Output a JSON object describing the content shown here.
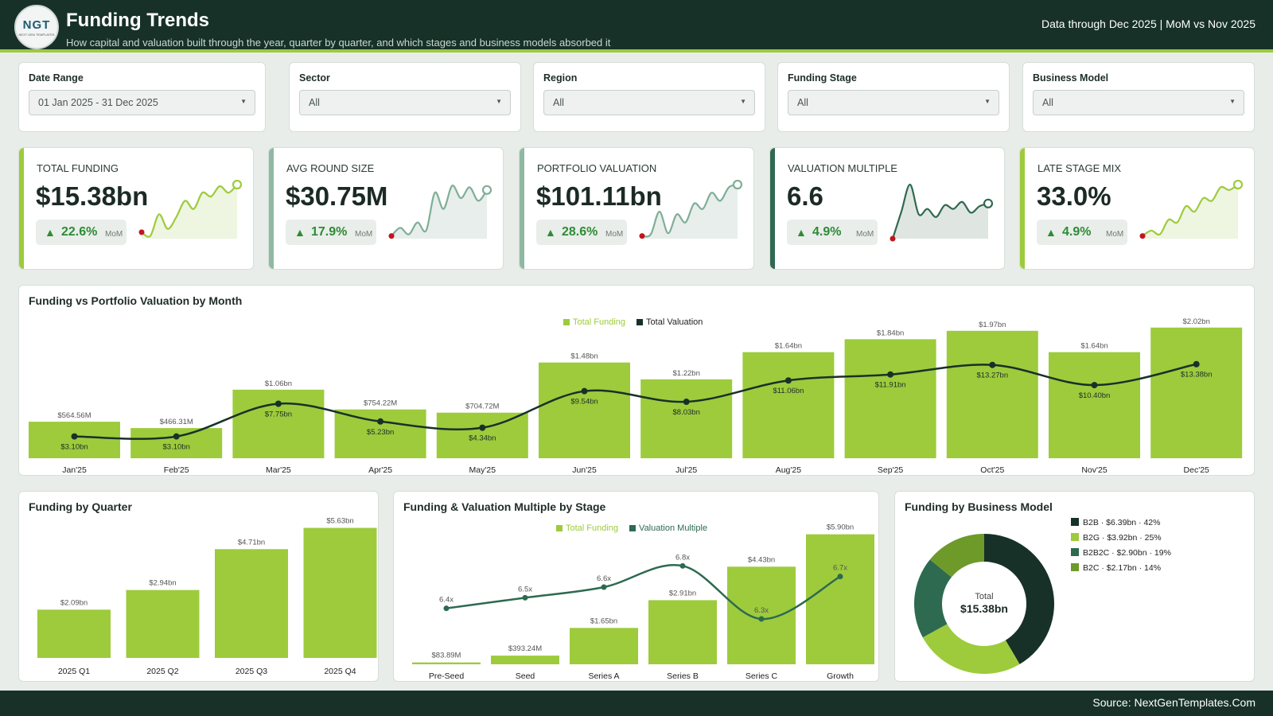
{
  "header": {
    "logo_text": "NGT",
    "logo_sub": "NEXT GEN TEMPLATES",
    "title": "Funding Trends",
    "subtitle": "How capital and valuation built through the year, quarter by quarter, and which stages and business models absorbed it",
    "data_through": "Data through Dec 2025 | MoM vs Nov 2025"
  },
  "filters": [
    {
      "label": "Date Range",
      "value": "01 Jan 2025 - 31 Dec 2025"
    },
    {
      "label": "Sector",
      "value": "All"
    },
    {
      "label": "Region",
      "value": "All"
    },
    {
      "label": "Funding Stage",
      "value": "All"
    },
    {
      "label": "Business Model",
      "value": "All"
    }
  ],
  "kpis": [
    {
      "label": "TOTAL FUNDING",
      "value": "$15.38bn",
      "change": "22.6%",
      "change_label": "MoM",
      "accent": "#9dcb3c",
      "spark_color": "#9dcb3c",
      "fill": "#eef5e1",
      "spark": [
        0.12,
        0.05,
        0.45,
        0.18,
        0.4,
        0.7,
        0.55,
        0.85,
        0.78,
        0.97,
        0.85,
        1.0
      ]
    },
    {
      "label": "AVG ROUND SIZE",
      "value": "$30.75M",
      "change": "17.9%",
      "change_label": "MoM",
      "accent": "#8fb9a3",
      "spark_color": "#7fae98",
      "fill": "#e8eeeb",
      "spark": [
        0.05,
        0.2,
        0.08,
        0.3,
        0.15,
        0.85,
        0.55,
        0.98,
        0.75,
        0.95,
        0.7,
        0.9
      ]
    },
    {
      "label": "PORTFOLIO VALUATION",
      "value": "$101.11bn",
      "change": "28.6%",
      "change_label": "MoM",
      "accent": "#8fb9a3",
      "spark_color": "#7fae98",
      "fill": "#e8eeeb",
      "spark": [
        0.05,
        0.08,
        0.5,
        0.1,
        0.45,
        0.3,
        0.65,
        0.55,
        0.85,
        0.7,
        0.95,
        1.0
      ]
    },
    {
      "label": "VALUATION MULTIPLE",
      "value": "6.6",
      "change": "4.9%",
      "change_label": "MoM",
      "accent": "#2f6a50",
      "spark_color": "#2f6a50",
      "fill": "#dfe6e2",
      "spark": [
        0.0,
        0.5,
        1.0,
        0.45,
        0.55,
        0.4,
        0.62,
        0.55,
        0.68,
        0.48,
        0.6,
        0.65
      ]
    },
    {
      "label": "LATE STAGE MIX",
      "value": "33.0%",
      "change": "4.9%",
      "change_label": "MoM",
      "accent": "#9dcb3c",
      "spark_color": "#9dcb3c",
      "fill": "#eef5e1",
      "spark": [
        0.05,
        0.15,
        0.08,
        0.35,
        0.3,
        0.6,
        0.5,
        0.75,
        0.7,
        0.95,
        0.9,
        1.0
      ]
    }
  ],
  "monthly": {
    "title": "Funding vs Portfolio Valuation by Month",
    "legend_funding": "Total Funding",
    "legend_valuation": "Total Valuation",
    "colors": {
      "bar": "#9dcb3c",
      "line": "#173128"
    },
    "chart_data": {
      "type": "bar",
      "categories": [
        "Jan'25",
        "Feb'25",
        "Mar'25",
        "Apr'25",
        "May'25",
        "Jun'25",
        "Jul'25",
        "Aug'25",
        "Sep'25",
        "Oct'25",
        "Nov'25",
        "Dec'25"
      ],
      "series": [
        {
          "name": "Total Funding",
          "values": [
            0.56456,
            0.46631,
            1.06,
            0.75422,
            0.70472,
            1.48,
            1.22,
            1.64,
            1.84,
            1.97,
            1.64,
            2.02
          ],
          "labels": [
            "$564.56M",
            "$466.31M",
            "$1.06bn",
            "$754.22M",
            "$704.72M",
            "$1.48bn",
            "$1.22bn",
            "$1.64bn",
            "$1.84bn",
            "$1.97bn",
            "$1.64bn",
            "$2.02bn"
          ]
        },
        {
          "name": "Total Valuation",
          "values": [
            3.1,
            3.1,
            7.75,
            5.23,
            4.34,
            9.54,
            8.03,
            11.06,
            11.91,
            13.27,
            10.4,
            13.38
          ],
          "labels": [
            "$3.10bn",
            "$3.10bn",
            "$7.75bn",
            "$5.23bn",
            "$4.34bn",
            "$9.54bn",
            "$8.03bn",
            "$11.06bn",
            "$11.91bn",
            "$13.27bn",
            "$10.40bn",
            "$13.38bn"
          ]
        }
      ]
    }
  },
  "quarterly": {
    "title": "Funding by Quarter",
    "chart_data": {
      "type": "bar",
      "categories": [
        "2025 Q1",
        "2025 Q2",
        "2025 Q3",
        "2025 Q4"
      ],
      "values": [
        2.09,
        2.94,
        4.71,
        5.63
      ],
      "labels": [
        "$2.09bn",
        "$2.94bn",
        "$4.71bn",
        "$5.63bn"
      ]
    }
  },
  "stage": {
    "title": "Funding & Valuation Multiple by Stage",
    "legend_funding": "Total Funding",
    "legend_multiple": "Valuation Multiple",
    "colors": {
      "bar": "#9dcb3c",
      "line": "#2d6a50"
    },
    "chart_data": {
      "type": "bar",
      "categories": [
        "Pre-Seed",
        "Seed",
        "Series A",
        "Series B",
        "Series C",
        "Growth"
      ],
      "series": [
        {
          "name": "Total Funding",
          "values": [
            0.08389,
            0.39324,
            1.65,
            2.91,
            4.43,
            5.9
          ],
          "labels": [
            "$83.89M",
            "$393.24M",
            "$1.65bn",
            "$2.91bn",
            "$4.43bn",
            "$5.90bn"
          ]
        },
        {
          "name": "Valuation Multiple",
          "values": [
            6.4,
            6.5,
            6.6,
            6.8,
            6.3,
            6.7
          ],
          "labels": [
            "6.4x",
            "6.5x",
            "6.6x",
            "6.8x",
            "6.3x",
            "6.7x"
          ]
        }
      ]
    }
  },
  "business_model": {
    "title": "Funding by Business Model",
    "center_label": "Total",
    "center_value": "$15.38bn",
    "chart_data": {
      "type": "pie",
      "categories": [
        "B2B",
        "B2G",
        "B2B2C",
        "B2C"
      ],
      "values": [
        6.39,
        3.92,
        2.9,
        2.17
      ],
      "legend": [
        "B2B · $6.39bn · 42%",
        "B2G · $3.92bn · 25%",
        "B2B2C · $2.90bn · 19%",
        "B2C · $2.17bn · 14%"
      ],
      "colors": [
        "#173128",
        "#9dcb3c",
        "#2d6a50",
        "#6e9a2a"
      ]
    }
  },
  "footer": {
    "source": "Source: NextGenTemplates.Com"
  }
}
